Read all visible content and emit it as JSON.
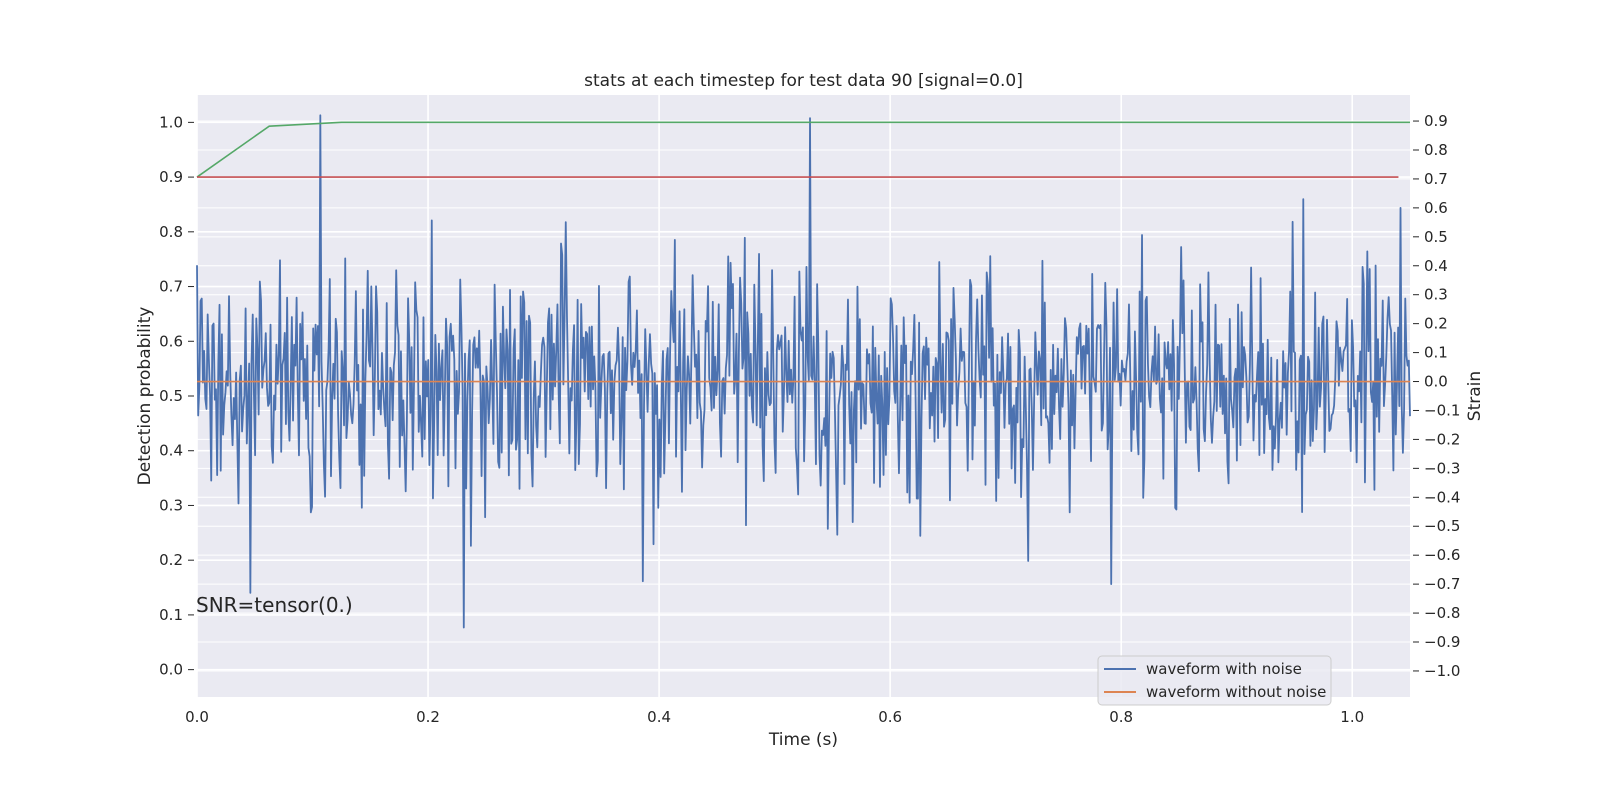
{
  "chart_data": {
    "type": "line",
    "title": "stats at each timestep for test data 90 [signal=0.0]",
    "xlabel": "Time (s)",
    "ylabel_left": "Detection probability",
    "ylabel_right": "Strain",
    "xlim": [
      0.0,
      1.05
    ],
    "ylim_left": [
      -0.05,
      1.05
    ],
    "ylim_right": [
      -1.09,
      0.99
    ],
    "x_ticks": [
      "0.0",
      "0.2",
      "0.4",
      "0.6",
      "0.8",
      "1.0"
    ],
    "y_left_ticks": [
      "0.0",
      "0.1",
      "0.2",
      "0.3",
      "0.4",
      "0.5",
      "0.6",
      "0.7",
      "0.8",
      "0.9",
      "1.0"
    ],
    "y_right_ticks": [
      "0.9",
      "0.8",
      "0.7",
      "0.6",
      "0.5",
      "0.4",
      "0.3",
      "0.2",
      "0.1",
      "0.0",
      "−0.1",
      "−0.2",
      "−0.3",
      "−0.4",
      "−0.5",
      "−0.6",
      "−0.7",
      "−0.8",
      "−0.9",
      "−1.0"
    ],
    "grid": true,
    "legend_position": "lower-right",
    "annotation": "SNR=tensor(0.)",
    "series": [
      {
        "name": "waveform with noise",
        "axis": "right",
        "color": "#4c72b0",
        "x_range": [
          0.0,
          1.05
        ],
        "n_points": 1024,
        "y_mean": 0.0,
        "y_std": 0.2,
        "peaks": [
          {
            "x": 0.107,
            "y": 0.92
          },
          {
            "x": 0.531,
            "y": 0.91
          },
          {
            "x": 0.958,
            "y": 0.63
          },
          {
            "x": 0.046,
            "y": -0.73
          },
          {
            "x": 0.231,
            "y": -0.85
          },
          {
            "x": 0.386,
            "y": -0.69
          },
          {
            "x": 0.791,
            "y": -0.7
          }
        ]
      },
      {
        "name": "waveform without noise",
        "axis": "right",
        "color": "#dd8452",
        "x": [
          0.0,
          1.05
        ],
        "y": [
          0.0,
          0.0
        ]
      },
      {
        "axis": "left",
        "color": "#55a868",
        "x": [
          0.0,
          0.0625,
          0.125,
          1.05
        ],
        "y": [
          0.9,
          0.993,
          1.0,
          1.0
        ]
      },
      {
        "axis": "left",
        "color": "#c44e52",
        "x": [
          0.0,
          1.04
        ],
        "y": [
          0.9,
          0.9
        ]
      }
    ]
  }
}
